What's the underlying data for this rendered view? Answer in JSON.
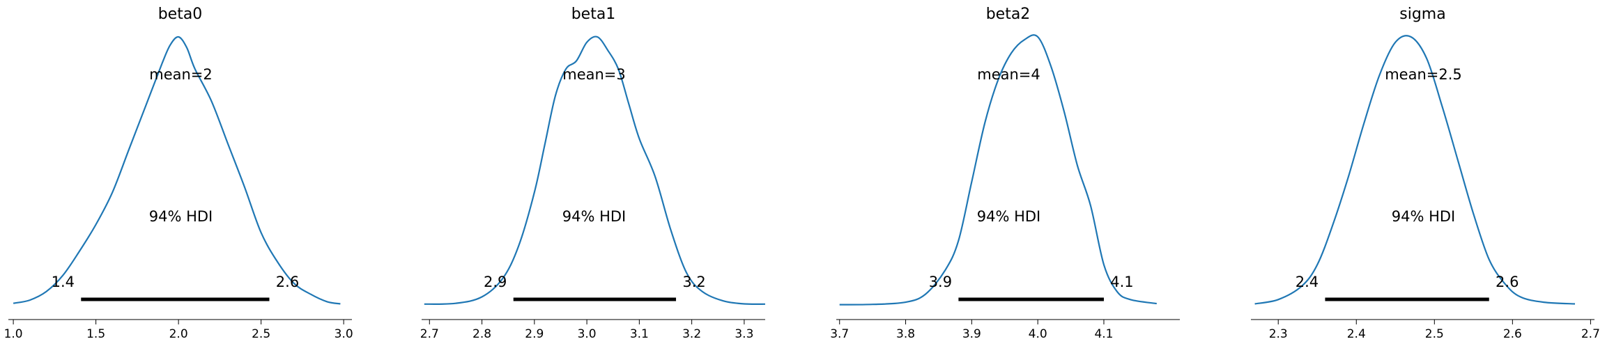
{
  "chart_data": [
    {
      "type": "line",
      "title": "beta0",
      "mean_label": "mean=2",
      "hdi_label": "94% HDI",
      "hdi": [
        1.41,
        2.55
      ],
      "hdi_low_label": "1.4",
      "hdi_high_label": "2.6",
      "xlim": [
        0.97,
        3.05
      ],
      "xticks": [
        1.0,
        1.5,
        2.0,
        2.5,
        3.0
      ],
      "xtick_labels": [
        "1.0",
        "1.5",
        "2.0",
        "2.5",
        "3.0"
      ],
      "density": {
        "x": [
          1.0,
          1.1,
          1.2,
          1.3,
          1.4,
          1.5,
          1.6,
          1.7,
          1.8,
          1.9,
          1.95,
          2.0,
          2.05,
          2.1,
          2.2,
          2.3,
          2.4,
          2.5,
          2.6,
          2.7,
          2.8,
          2.9,
          2.98
        ],
        "y": [
          0.006,
          0.018,
          0.05,
          0.11,
          0.2,
          0.3,
          0.42,
          0.58,
          0.74,
          0.9,
          0.97,
          1.0,
          0.96,
          0.88,
          0.76,
          0.6,
          0.44,
          0.27,
          0.16,
          0.08,
          0.04,
          0.012,
          0.004
        ]
      }
    },
    {
      "type": "line",
      "title": "beta1",
      "mean_label": "mean=3",
      "hdi_label": "94% HDI",
      "hdi": [
        2.86,
        3.17
      ],
      "hdi_low_label": "2.9",
      "hdi_high_label": "3.2",
      "xlim": [
        2.685,
        3.34
      ],
      "xticks": [
        2.7,
        2.8,
        2.9,
        3.0,
        3.1,
        3.2,
        3.3
      ],
      "xtick_labels": [
        "2.7",
        "2.8",
        "2.9",
        "3.0",
        "3.1",
        "3.2",
        "3.3"
      ],
      "density": {
        "x": [
          2.69,
          2.75,
          2.8,
          2.84,
          2.87,
          2.9,
          2.92,
          2.94,
          2.96,
          2.98,
          3.0,
          3.02,
          3.04,
          3.06,
          3.08,
          3.1,
          3.13,
          3.16,
          3.19,
          3.22,
          3.26,
          3.3,
          3.34
        ],
        "y": [
          0.003,
          0.006,
          0.03,
          0.1,
          0.22,
          0.42,
          0.6,
          0.78,
          0.88,
          0.91,
          0.98,
          1.0,
          0.95,
          0.88,
          0.75,
          0.62,
          0.48,
          0.28,
          0.12,
          0.05,
          0.015,
          0.004,
          0.003
        ]
      }
    },
    {
      "type": "line",
      "title": "beta2",
      "mean_label": "mean=4",
      "hdi_label": "94% HDI",
      "hdi": [
        3.88,
        4.1
      ],
      "hdi_low_label": "3.9",
      "hdi_high_label": "4.1",
      "xlim": [
        3.695,
        4.215
      ],
      "xticks": [
        3.7,
        3.8,
        3.9,
        4.0,
        4.1
      ],
      "xtick_labels": [
        "3.7",
        "3.8",
        "3.9",
        "4.0",
        "4.1"
      ],
      "density": {
        "x": [
          3.7,
          3.75,
          3.8,
          3.83,
          3.86,
          3.88,
          3.9,
          3.92,
          3.94,
          3.96,
          3.98,
          4.0,
          4.02,
          4.04,
          4.06,
          4.08,
          4.1,
          4.12,
          4.14,
          4.18
        ],
        "y": [
          0.001,
          0.002,
          0.01,
          0.04,
          0.13,
          0.24,
          0.46,
          0.68,
          0.84,
          0.94,
          0.99,
          1.0,
          0.89,
          0.72,
          0.52,
          0.37,
          0.15,
          0.05,
          0.02,
          0.005
        ]
      }
    },
    {
      "type": "line",
      "title": "sigma",
      "mean_label": "mean=2.5",
      "hdi_label": "94% HDI",
      "hdi": [
        2.36,
        2.57
      ],
      "hdi_low_label": "2.4",
      "hdi_high_label": "2.6",
      "xlim": [
        2.265,
        2.705
      ],
      "xticks": [
        2.3,
        2.4,
        2.5,
        2.6,
        2.7
      ],
      "xtick_labels": [
        "2.3",
        "2.4",
        "2.5",
        "2.6",
        "2.7"
      ],
      "density": {
        "x": [
          2.27,
          2.3,
          2.33,
          2.35,
          2.37,
          2.39,
          2.41,
          2.43,
          2.45,
          2.47,
          2.49,
          2.51,
          2.53,
          2.55,
          2.57,
          2.59,
          2.61,
          2.64,
          2.68
        ],
        "y": [
          0.004,
          0.02,
          0.07,
          0.15,
          0.3,
          0.48,
          0.68,
          0.86,
          0.98,
          1.0,
          0.92,
          0.74,
          0.54,
          0.34,
          0.17,
          0.08,
          0.03,
          0.01,
          0.004
        ]
      }
    }
  ]
}
